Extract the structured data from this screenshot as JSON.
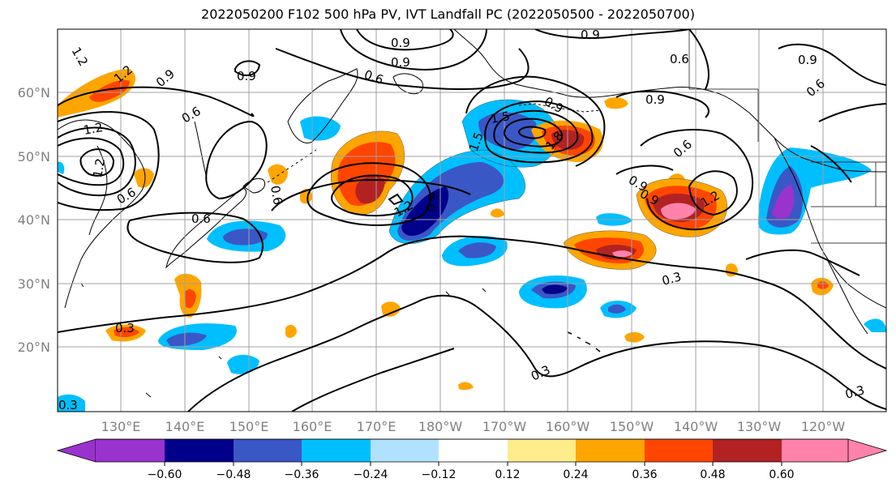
{
  "title": "2022050200 F102 500 hPa PV, IVT Landfall PC (2022050500 - 2022050700)",
  "lon_labels": [
    "130°E",
    "140°E",
    "150°E",
    "160°E",
    "170°E",
    "180°W",
    "170°W",
    "160°W",
    "150°W",
    "140°W",
    "130°W",
    "120°W"
  ],
  "lat_labels": [
    "60°N",
    "50°N",
    "40°N",
    "30°N",
    "20°N"
  ],
  "colorbar": {
    "ticks": [
      "−0.60",
      "−0.48",
      "−0.36",
      "−0.24",
      "−0.12",
      "0.12",
      "0.24",
      "0.36",
      "0.48",
      "0.60"
    ],
    "colors": [
      "#9a32cd",
      "#00008b",
      "#3a57c6",
      "#00bfff",
      "#b0e2ff",
      "#ffffff",
      "#ffec8b",
      "#ffa500",
      "#ff4500",
      "#b22222",
      "#ff82ab"
    ]
  },
  "contour_labels": [
    "1.2",
    "1.2",
    "0.9",
    "0.9",
    "0.6",
    "1.2",
    "1.2",
    "0.9",
    "0.9",
    "0.9",
    "0.6",
    "0.6",
    "0.9",
    "0.9",
    "0.6",
    "0.9",
    "0.6",
    "1.5",
    "1.5",
    "1.8",
    "0.6",
    "0.9",
    "1.2",
    "0.6",
    "0.3",
    "0.3",
    "0.3",
    "0.3",
    "0.3",
    "1.2",
    "0.9",
    "0.9",
    "0.6"
  ]
}
